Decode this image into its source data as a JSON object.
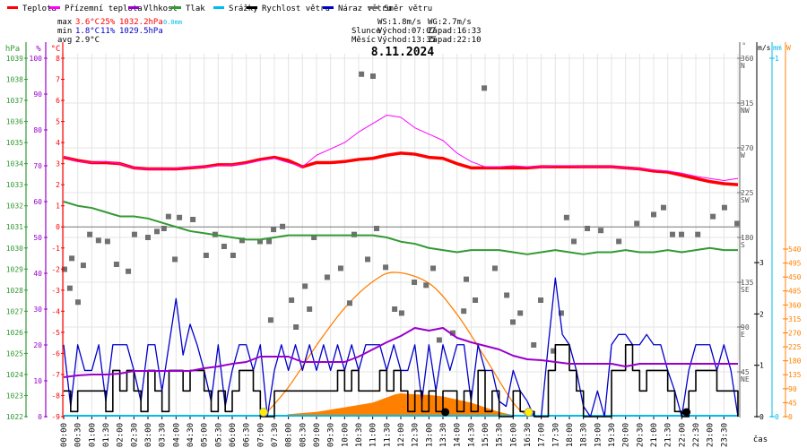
{
  "legend": [
    {
      "label": "Teplota",
      "color": "#ff0000"
    },
    {
      "label": "Přízemní teplota",
      "color": "#ff00ff"
    },
    {
      "label": "Vlhkost",
      "color": "#9900cc"
    },
    {
      "label": "Tlak",
      "color": "#339933"
    },
    {
      "label": "Srážky",
      "color": "#00bbee"
    },
    {
      "label": "Rychlost větru",
      "color": "#000000"
    },
    {
      "label": "Náraz větru",
      "color": "#0000cc"
    },
    {
      "label": "Směr větru",
      "color": "#707070"
    }
  ],
  "stats": {
    "max_label": "max",
    "max_temp": "3.6°C",
    "max_hum": "25%",
    "max_press": "1032.2hPa",
    "max_rain": "0.0mm",
    "min_label": "min",
    "min_temp": "1.8°C",
    "min_hum": "11%",
    "min_press": "1029.5hPa",
    "avg_label": "avg",
    "avg_temp": "2.9°C"
  },
  "info": {
    "ws": "WS:1.8m/s",
    "wg": "WG:2.7m/s",
    "sun_label": "Slunce",
    "sun_rise": "Východ:07:07",
    "sun_set": "Západ:16:33",
    "moon_label": "Měsíc",
    "moon_rise": "Východ:13:35",
    "moon_set": "Západ:22:10"
  },
  "chart_data": {
    "type": "line",
    "title": "8.11.2024",
    "xlabel": "čas",
    "x_range_hours": [
      0,
      24
    ],
    "time_ticks": [
      "00:00",
      "00:30",
      "01:00",
      "01:30",
      "02:00",
      "02:30",
      "03:00",
      "03:30",
      "04:00",
      "04:30",
      "05:00",
      "05:30",
      "06:00",
      "06:30",
      "07:00",
      "07:30",
      "08:00",
      "08:30",
      "09:00",
      "09:30",
      "10:00",
      "10:30",
      "11:00",
      "11:30",
      "12:00",
      "12:30",
      "13:00",
      "13:30",
      "14:00",
      "14:30",
      "15:00",
      "15:30",
      "16:00",
      "16:30",
      "17:00",
      "17:30",
      "18:00",
      "18:30",
      "19:00",
      "19:30",
      "20:00",
      "20:30",
      "21:00",
      "21:30",
      "22:00",
      "22:30",
      "23:00",
      "23:30"
    ],
    "axes": {
      "hPa": {
        "label": "hPa",
        "range": [
          1022,
          1039
        ]
      },
      "percent": {
        "label": "%",
        "range": [
          0,
          100
        ]
      },
      "celsius": {
        "label": "°C",
        "range": [
          -9,
          8
        ]
      },
      "direction": {
        "label": "°",
        "ticks": [
          {
            "v": 360,
            "c": "N"
          },
          {
            "v": 315,
            "c": "NW"
          },
          {
            "v": 270,
            "c": "W"
          },
          {
            "v": 225,
            "c": "SW"
          },
          {
            "v": 180,
            "c": "S"
          },
          {
            "v": 135,
            "c": "SE"
          },
          {
            "v": 90,
            "c": "E"
          },
          {
            "v": 45,
            "c": "NE"
          }
        ]
      },
      "wind": {
        "label": "m/s",
        "ticks": [
          0,
          1,
          2,
          3
        ]
      },
      "rain": {
        "label": "mm",
        "ticks": [
          0,
          1
        ]
      },
      "radiation": {
        "label": "W",
        "ticks": [
          0,
          45,
          90,
          135,
          180,
          225,
          270,
          315,
          360,
          405,
          450,
          495,
          540
        ]
      }
    },
    "series_step_hours": 0.5,
    "temperature": [
      3.3,
      3.15,
      3.05,
      3.05,
      3.0,
      2.8,
      2.75,
      2.75,
      2.75,
      2.8,
      2.85,
      2.95,
      2.95,
      3.05,
      3.2,
      3.3,
      3.15,
      2.85,
      3.05,
      3.05,
      3.1,
      3.2,
      3.25,
      3.4,
      3.5,
      3.45,
      3.3,
      3.25,
      3.0,
      2.8,
      2.8,
      2.8,
      2.8,
      2.8,
      2.85,
      2.85,
      2.85,
      2.85,
      2.85,
      2.85,
      2.8,
      2.75,
      2.65,
      2.6,
      2.45,
      2.3,
      2.15,
      2.05,
      2.0
    ],
    "ground_temperature": [
      3.35,
      3.1,
      3.05,
      3.1,
      3.0,
      2.8,
      2.75,
      2.75,
      2.78,
      2.82,
      2.85,
      2.9,
      2.95,
      3.0,
      3.15,
      3.25,
      3.05,
      2.85,
      3.4,
      3.7,
      4.0,
      4.5,
      4.9,
      5.3,
      5.2,
      4.7,
      4.4,
      4.1,
      3.5,
      3.1,
      2.85,
      2.85,
      2.9,
      2.85,
      2.85,
      2.9,
      2.9,
      2.85,
      2.85,
      2.85,
      2.8,
      2.75,
      2.7,
      2.65,
      2.55,
      2.4,
      2.3,
      2.2,
      2.3
    ],
    "humidity": [
      11,
      11.5,
      11.75,
      11.75,
      12,
      12.75,
      12.75,
      12.75,
      12.75,
      12.75,
      13.5,
      14,
      14.75,
      15.25,
      16.75,
      16.75,
      16.75,
      15.25,
      15.25,
      15.25,
      15.25,
      16.75,
      18.75,
      20.75,
      22.5,
      24.75,
      24,
      24.75,
      22,
      20.75,
      19.75,
      18.75,
      17,
      16,
      15.75,
      15.25,
      14.75,
      14.75,
      14.75,
      14.75,
      14,
      14.75,
      14.75,
      14.75,
      14.75,
      14.75,
      14.75,
      14.75,
      14.75
    ],
    "pressure": [
      1032.2,
      1032.0,
      1031.9,
      1031.7,
      1031.5,
      1031.5,
      1031.4,
      1031.2,
      1031.0,
      1030.8,
      1030.7,
      1030.6,
      1030.5,
      1030.4,
      1030.4,
      1030.5,
      1030.6,
      1030.6,
      1030.6,
      1030.6,
      1030.6,
      1030.6,
      1030.6,
      1030.5,
      1030.3,
      1030.2,
      1030.0,
      1029.9,
      1029.8,
      1029.9,
      1029.9,
      1029.9,
      1029.8,
      1029.7,
      1029.8,
      1029.9,
      1029.8,
      1029.7,
      1029.8,
      1029.8,
      1029.9,
      1029.8,
      1029.8,
      1029.9,
      1029.8,
      1029.9,
      1030.0,
      1029.9,
      1029.9
    ],
    "wind_step_hours": 0.25,
    "wind_speed": [
      0.5,
      0.1,
      0.5,
      0.5,
      0.5,
      0.5,
      0.1,
      0.9,
      0.5,
      0.9,
      0.5,
      0.1,
      0.9,
      0.5,
      0.1,
      0.9,
      0.9,
      0.5,
      0.9,
      0.9,
      0.5,
      0.1,
      0.5,
      0.1,
      0.5,
      0.9,
      0.9,
      0.5,
      0,
      0,
      0.5,
      0.5,
      0.5,
      0.5,
      0.5,
      0.5,
      0.5,
      0.5,
      0.5,
      0.9,
      0.5,
      0.9,
      0.5,
      0.5,
      0.5,
      0.9,
      0.5,
      0.9,
      0.5,
      0.1,
      0.5,
      0.1,
      0.5,
      0.1,
      0.5,
      0.5,
      0.1,
      0.5,
      0.1,
      0.9,
      0.1,
      0.5,
      0,
      0,
      0.5,
      0.1,
      0.1,
      0,
      0,
      0.9,
      1.4,
      1.4,
      0.9,
      0.5,
      0,
      0,
      0,
      0,
      0.9,
      0.9,
      1.4,
      0.9,
      0.5,
      0.9,
      0.9,
      0.9,
      0.5,
      0.1,
      0,
      0.5,
      0.9,
      0.9,
      0.9,
      0.5,
      0.5,
      0.5,
      0
    ],
    "wind_gust": [
      1.4,
      0.2,
      1.4,
      0.9,
      0.9,
      1.4,
      0.3,
      1.4,
      1.4,
      1.4,
      0.9,
      0.3,
      1.4,
      1.4,
      0.5,
      1.4,
      2.3,
      1.2,
      1.8,
      1.4,
      0.9,
      0.3,
      1.4,
      0.2,
      0.9,
      1.4,
      1.4,
      0.9,
      1.4,
      0,
      0.9,
      1.4,
      0.9,
      1.4,
      0.9,
      1.4,
      0.9,
      1.4,
      0.9,
      1.4,
      0.9,
      1.4,
      0.9,
      1.4,
      1.4,
      1.4,
      0.9,
      1.4,
      0.9,
      0.9,
      1.4,
      0.3,
      1.4,
      0.5,
      1.4,
      0.9,
      1.4,
      1.4,
      0.3,
      1.4,
      0.9,
      0.9,
      0.3,
      0.2,
      0.9,
      0.5,
      0.3,
      0,
      0,
      1.4,
      2.7,
      1.6,
      1.4,
      0.9,
      0.2,
      0,
      0.5,
      0,
      1.4,
      1.6,
      1.6,
      1.4,
      1.4,
      1.6,
      1.4,
      1.4,
      0.9,
      0.5,
      0,
      0.9,
      1.4,
      1.4,
      1.4,
      0.9,
      1.4,
      0.9,
      0
    ],
    "precipitation_mm": 0.0,
    "wind_direction": [
      [
        0.03,
        148
      ],
      [
        0.29,
        159
      ],
      [
        0.22,
        129
      ],
      [
        0.51,
        115
      ],
      [
        0.7,
        152
      ],
      [
        0.93,
        183
      ],
      [
        1.24,
        177
      ],
      [
        1.56,
        176
      ],
      [
        1.88,
        153
      ],
      [
        2.3,
        146
      ],
      [
        2.52,
        183
      ],
      [
        3.0,
        180
      ],
      [
        3.32,
        186
      ],
      [
        3.57,
        189
      ],
      [
        3.73,
        201
      ],
      [
        3.96,
        158
      ],
      [
        4.12,
        200
      ],
      [
        4.6,
        198
      ],
      [
        5.07,
        162
      ],
      [
        5.39,
        183
      ],
      [
        5.71,
        171
      ],
      [
        6.03,
        162
      ],
      [
        6.35,
        177
      ],
      [
        6.99,
        176
      ],
      [
        7.31,
        176
      ],
      [
        7.47,
        188
      ],
      [
        7.37,
        97
      ],
      [
        7.79,
        191
      ],
      [
        8.11,
        117
      ],
      [
        8.27,
        90
      ],
      [
        8.59,
        131
      ],
      [
        8.75,
        108
      ],
      [
        8.91,
        180
      ],
      [
        9.38,
        140
      ],
      [
        9.86,
        149
      ],
      [
        10.18,
        114
      ],
      [
        10.34,
        183
      ],
      [
        10.6,
        344
      ],
      [
        10.82,
        158
      ],
      [
        11.01,
        342
      ],
      [
        11.14,
        189
      ],
      [
        11.46,
        150
      ],
      [
        11.78,
        108
      ],
      [
        12.03,
        104
      ],
      [
        12.48,
        135
      ],
      [
        12.9,
        132
      ],
      [
        13.15,
        149
      ],
      [
        13.37,
        77
      ],
      [
        13.85,
        84
      ],
      [
        14.24,
        106
      ],
      [
        14.33,
        138
      ],
      [
        14.65,
        117
      ],
      [
        14.97,
        330
      ],
      [
        15.35,
        149
      ],
      [
        15.77,
        122
      ],
      [
        15.99,
        95
      ],
      [
        16.25,
        104
      ],
      [
        16.73,
        72
      ],
      [
        16.98,
        117
      ],
      [
        17.43,
        66
      ],
      [
        17.71,
        104
      ],
      [
        17.9,
        200
      ],
      [
        18.16,
        176
      ],
      [
        18.64,
        189
      ],
      [
        19.12,
        187
      ],
      [
        19.76,
        176
      ],
      [
        20.4,
        194
      ],
      [
        21.0,
        203
      ],
      [
        21.35,
        210
      ],
      [
        21.67,
        183
      ],
      [
        21.99,
        183
      ],
      [
        22.57,
        183
      ],
      [
        23.11,
        201
      ],
      [
        23.52,
        210
      ],
      [
        23.97,
        194
      ]
    ],
    "solar_measured_W": [
      [
        7.75,
        0
      ],
      [
        8,
        8
      ],
      [
        9,
        15
      ],
      [
        10,
        30
      ],
      [
        11,
        45
      ],
      [
        11.8,
        72
      ],
      [
        12,
        75
      ],
      [
        12.5,
        72
      ],
      [
        13,
        70
      ],
      [
        13.5,
        65
      ],
      [
        14,
        55
      ],
      [
        14.5,
        45
      ],
      [
        15,
        30
      ],
      [
        15.5,
        15
      ],
      [
        16,
        5
      ],
      [
        16.2,
        0
      ]
    ],
    "solar_theoretical_W": [
      [
        7.1,
        0
      ],
      [
        8,
        95
      ],
      [
        9,
        230
      ],
      [
        10,
        350
      ],
      [
        11,
        435
      ],
      [
        11.8,
        465
      ],
      [
        13,
        430
      ],
      [
        14,
        330
      ],
      [
        15,
        190
      ],
      [
        16,
        45
      ],
      [
        16.55,
        0
      ]
    ],
    "sun_events_hours": [
      7.117,
      16.55
    ],
    "moon_events_hours": [
      13.583,
      22.167
    ]
  }
}
